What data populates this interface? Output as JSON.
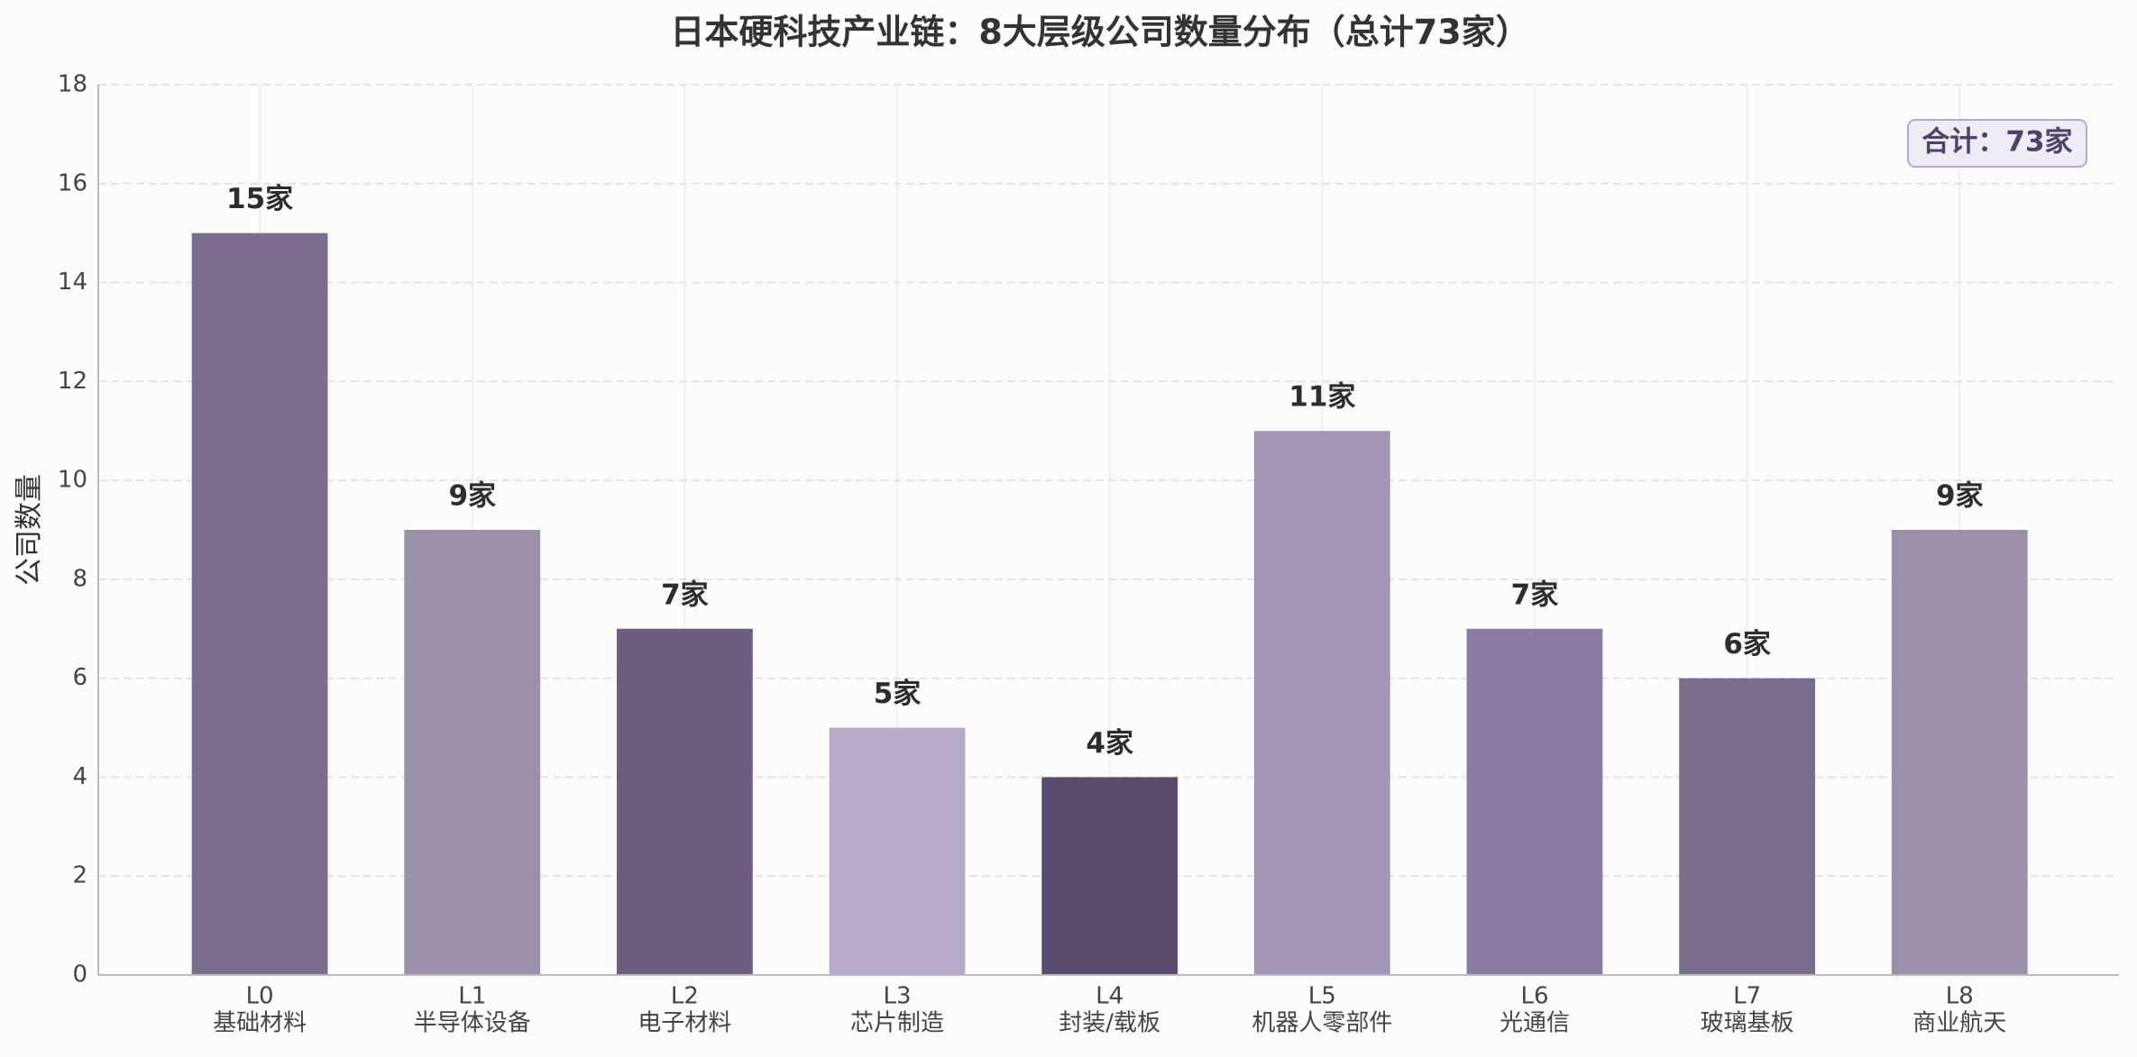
{
  "chart_data": {
    "type": "bar",
    "title": "日本硬科技产业链：8大层级公司数量分布（总计73家）",
    "y_label": "公司数量",
    "annotation": "合计：73家",
    "categories": [
      [
        "L0",
        "基础材料"
      ],
      [
        "L1",
        "半导体设备"
      ],
      [
        "L2",
        "电子材料"
      ],
      [
        "L3",
        "芯片制造"
      ],
      [
        "L4",
        "封装/载板"
      ],
      [
        "L5",
        "机器人零部件"
      ],
      [
        "L6",
        "光通信"
      ],
      [
        "L7",
        "玻璃基板"
      ],
      [
        "L8",
        "商业航天"
      ]
    ],
    "values": [
      15,
      9,
      7,
      5,
      4,
      11,
      7,
      6,
      9
    ],
    "value_labels": [
      "15家",
      "9家",
      "7家",
      "5家",
      "4家",
      "11家",
      "7家",
      "6家",
      "9家"
    ],
    "colors": [
      "#7b6d8d",
      "#9c8faa",
      "#6d5d7e",
      "#b7a9c9",
      "#5b4b6e",
      "#a395b5",
      "#8c7ba3",
      "#7b6d8d",
      "#9c8faa"
    ],
    "ylim": [
      0,
      18
    ],
    "yticks": [
      0,
      2,
      4,
      6,
      8,
      10,
      12,
      14,
      16,
      18
    ],
    "grid": true
  }
}
